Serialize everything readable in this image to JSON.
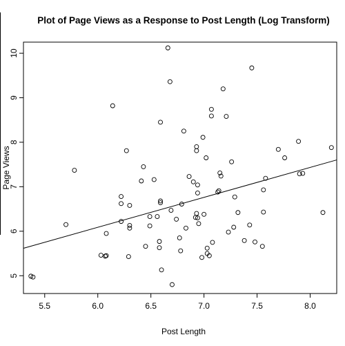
{
  "chart_data": {
    "type": "scatter",
    "title": "Plot of Page Views as a Response to Post Length (Log Transform)",
    "xlabel": "Post Length",
    "ylabel": "Page Views",
    "xlim": [
      5.3,
      8.25
    ],
    "ylim": [
      4.6,
      10.25
    ],
    "x_ticks": [
      5.5,
      6.0,
      6.5,
      7.0,
      7.5,
      8.0
    ],
    "x_tick_labels": [
      "5.5",
      "6.0",
      "6.5",
      "7.0",
      "7.5",
      "8.0"
    ],
    "y_ticks": [
      5,
      6,
      7,
      8,
      9,
      10
    ],
    "y_tick_labels": [
      "5",
      "6",
      "7",
      "8",
      "9",
      "10"
    ],
    "grid": false,
    "legend": false,
    "marker": "open-circle",
    "colors": {
      "points": "#000000",
      "line": "#000000",
      "frame": "#000000",
      "background": "#ffffff"
    },
    "regression_line": {
      "intercept": 2.05,
      "slope": 0.673
    },
    "points": [
      {
        "x": 5.37,
        "y": 4.99
      },
      {
        "x": 5.39,
        "y": 4.97
      },
      {
        "x": 5.7,
        "y": 6.15
      },
      {
        "x": 5.78,
        "y": 7.37
      },
      {
        "x": 6.03,
        "y": 5.46
      },
      {
        "x": 6.07,
        "y": 5.44
      },
      {
        "x": 6.08,
        "y": 5.45
      },
      {
        "x": 6.08,
        "y": 5.95
      },
      {
        "x": 6.14,
        "y": 8.82
      },
      {
        "x": 6.22,
        "y": 6.22
      },
      {
        "x": 6.22,
        "y": 6.78
      },
      {
        "x": 6.22,
        "y": 6.62
      },
      {
        "x": 6.27,
        "y": 7.81
      },
      {
        "x": 6.29,
        "y": 5.43
      },
      {
        "x": 6.3,
        "y": 6.58
      },
      {
        "x": 6.3,
        "y": 6.13
      },
      {
        "x": 6.3,
        "y": 6.07
      },
      {
        "x": 6.41,
        "y": 7.13
      },
      {
        "x": 6.43,
        "y": 7.45
      },
      {
        "x": 6.45,
        "y": 5.66
      },
      {
        "x": 6.49,
        "y": 6.12
      },
      {
        "x": 6.49,
        "y": 6.33
      },
      {
        "x": 6.53,
        "y": 7.16
      },
      {
        "x": 6.56,
        "y": 6.33
      },
      {
        "x": 6.58,
        "y": 5.77
      },
      {
        "x": 6.58,
        "y": 5.63
      },
      {
        "x": 6.59,
        "y": 8.45
      },
      {
        "x": 6.59,
        "y": 6.64
      },
      {
        "x": 6.59,
        "y": 6.68
      },
      {
        "x": 6.6,
        "y": 5.13
      },
      {
        "x": 6.66,
        "y": 10.12
      },
      {
        "x": 6.68,
        "y": 9.36
      },
      {
        "x": 6.69,
        "y": 6.47
      },
      {
        "x": 6.7,
        "y": 4.8
      },
      {
        "x": 6.74,
        "y": 6.27
      },
      {
        "x": 6.77,
        "y": 5.85
      },
      {
        "x": 6.78,
        "y": 5.56
      },
      {
        "x": 6.79,
        "y": 6.61
      },
      {
        "x": 6.81,
        "y": 8.25
      },
      {
        "x": 6.83,
        "y": 6.07
      },
      {
        "x": 6.86,
        "y": 7.23
      },
      {
        "x": 6.9,
        "y": 7.11
      },
      {
        "x": 6.92,
        "y": 6.31
      },
      {
        "x": 6.93,
        "y": 6.4
      },
      {
        "x": 6.93,
        "y": 7.81
      },
      {
        "x": 6.93,
        "y": 7.9
      },
      {
        "x": 6.94,
        "y": 6.86
      },
      {
        "x": 6.94,
        "y": 6.3
      },
      {
        "x": 6.94,
        "y": 7.04
      },
      {
        "x": 6.95,
        "y": 6.17
      },
      {
        "x": 6.98,
        "y": 5.41
      },
      {
        "x": 6.99,
        "y": 8.11
      },
      {
        "x": 7.0,
        "y": 6.38
      },
      {
        "x": 7.02,
        "y": 7.65
      },
      {
        "x": 7.03,
        "y": 5.62
      },
      {
        "x": 7.03,
        "y": 5.5
      },
      {
        "x": 7.05,
        "y": 5.45
      },
      {
        "x": 7.07,
        "y": 8.74
      },
      {
        "x": 7.07,
        "y": 8.59
      },
      {
        "x": 7.08,
        "y": 5.75
      },
      {
        "x": 7.13,
        "y": 6.88
      },
      {
        "x": 7.14,
        "y": 6.91
      },
      {
        "x": 7.15,
        "y": 7.31
      },
      {
        "x": 7.16,
        "y": 7.24
      },
      {
        "x": 7.18,
        "y": 9.2
      },
      {
        "x": 7.21,
        "y": 8.58
      },
      {
        "x": 7.23,
        "y": 5.98
      },
      {
        "x": 7.26,
        "y": 7.56
      },
      {
        "x": 7.28,
        "y": 6.09
      },
      {
        "x": 7.29,
        "y": 6.77
      },
      {
        "x": 7.32,
        "y": 6.42
      },
      {
        "x": 7.38,
        "y": 5.79
      },
      {
        "x": 7.43,
        "y": 6.14
      },
      {
        "x": 7.45,
        "y": 9.67
      },
      {
        "x": 7.48,
        "y": 5.76
      },
      {
        "x": 7.55,
        "y": 5.66
      },
      {
        "x": 7.56,
        "y": 6.43
      },
      {
        "x": 7.56,
        "y": 6.93
      },
      {
        "x": 7.58,
        "y": 7.19
      },
      {
        "x": 7.7,
        "y": 7.84
      },
      {
        "x": 7.76,
        "y": 7.65
      },
      {
        "x": 7.89,
        "y": 8.02
      },
      {
        "x": 7.9,
        "y": 7.29
      },
      {
        "x": 7.93,
        "y": 7.3
      },
      {
        "x": 8.12,
        "y": 6.42
      },
      {
        "x": 8.2,
        "y": 7.88
      }
    ]
  }
}
